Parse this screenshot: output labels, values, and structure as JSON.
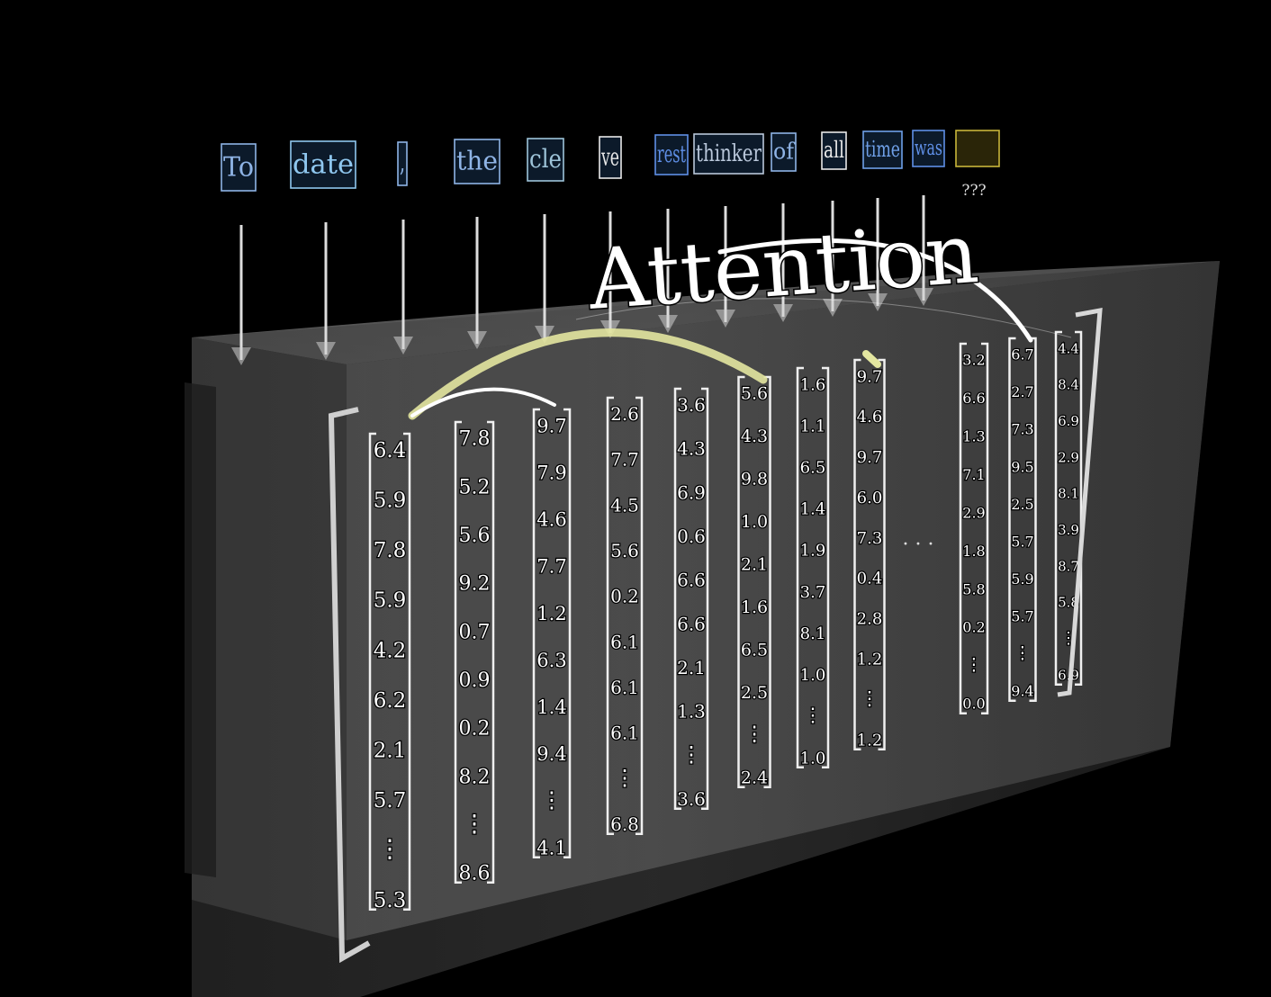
{
  "title": "Attention",
  "tokens": [
    {
      "text": "To",
      "color": "#8fb4e6"
    },
    {
      "text": "date",
      "color": "#8fc7ef"
    },
    {
      "text": ",",
      "color": "#8fb4e6"
    },
    {
      "text": "the",
      "color": "#8fb4e6"
    },
    {
      "text": "cle",
      "color": "#9ec4d9"
    },
    {
      "text": "ve",
      "color": "#e8e8e8"
    },
    {
      "text": "rest",
      "color": "#5f8fe6"
    },
    {
      "text": "thinker",
      "color": "#b9c7da"
    },
    {
      "text": "of",
      "color": "#8fb4e6"
    },
    {
      "text": "all",
      "color": "#e8e8e8"
    },
    {
      "text": "time",
      "color": "#6fa0e8"
    },
    {
      "text": "was",
      "color": "#5f8fe6"
    },
    {
      "text": "",
      "color": "#c9b63a"
    }
  ],
  "unknown_label": "???",
  "ellipsis": "· · ·",
  "vectors": [
    {
      "values": [
        "6.4",
        "5.9",
        "7.8",
        "5.9",
        "4.2",
        "6.2",
        "2.1",
        "5.7",
        "⋮",
        "5.3"
      ]
    },
    {
      "values": [
        "7.8",
        "5.2",
        "5.6",
        "9.2",
        "0.7",
        "0.9",
        "0.2",
        "8.2",
        "⋮",
        "8.6"
      ]
    },
    {
      "values": [
        "9.7",
        "7.9",
        "4.6",
        "7.7",
        "1.2",
        "6.3",
        "1.4",
        "9.4",
        "⋮",
        "4.1"
      ]
    },
    {
      "values": [
        "2.6",
        "7.7",
        "4.5",
        "5.6",
        "0.2",
        "6.1",
        "6.1",
        "6.1",
        "⋮",
        "6.8"
      ]
    },
    {
      "values": [
        "3.6",
        "4.3",
        "6.9",
        "0.6",
        "6.6",
        "6.6",
        "2.1",
        "1.3",
        "⋮",
        "3.6"
      ]
    },
    {
      "values": [
        "5.6",
        "4.3",
        "9.8",
        "1.0",
        "2.1",
        "1.6",
        "6.5",
        "2.5",
        "⋮",
        "2.4"
      ]
    },
    {
      "values": [
        "1.6",
        "1.1",
        "6.5",
        "1.4",
        "1.9",
        "3.7",
        "8.1",
        "1.0",
        "⋮",
        "1.0"
      ]
    },
    {
      "values": [
        "9.7",
        "4.6",
        "9.7",
        "6.0",
        "7.3",
        "0.4",
        "2.8",
        "1.2",
        "⋮",
        "1.2"
      ]
    },
    {
      "values": [
        "3.2",
        "6.6",
        "1.3",
        "7.1",
        "2.9",
        "1.8",
        "5.8",
        "0.2",
        "⋮",
        "0.0"
      ]
    },
    {
      "values": [
        "6.7",
        "2.7",
        "7.3",
        "9.5",
        "2.5",
        "5.7",
        "5.9",
        "5.7",
        "⋮",
        "9.4"
      ]
    },
    {
      "values": [
        "4.4",
        "8.4",
        "6.9",
        "2.9",
        "8.1",
        "3.9",
        "8.7",
        "5.8",
        "⋮",
        "6.9"
      ]
    }
  ],
  "colors": {
    "background": "#000000",
    "box_front": "#3d3d3d",
    "box_top": "#595959",
    "arc_highlight": "#e3e6a0",
    "arc_white": "#ffffff",
    "query_box": "#c9b63a"
  }
}
